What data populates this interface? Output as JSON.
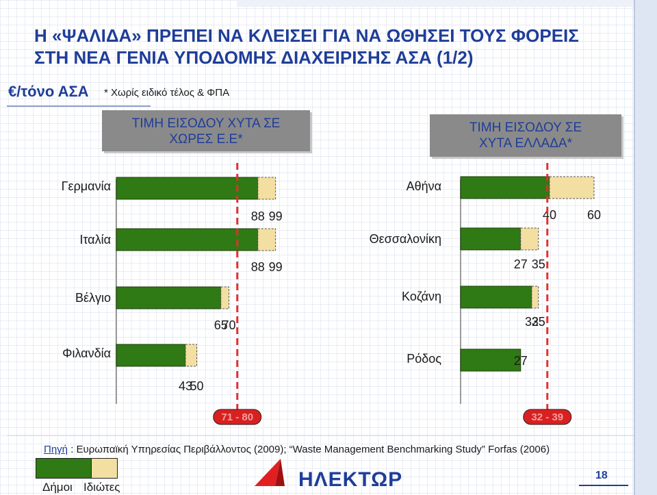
{
  "title_line1": "Η «ΨΑΛΙΔΑ» ΠΡΕΠΕΙ ΝΑ ΚΛΕΙΣΕΙ ΓΙΑ ΝΑ ΩΘΗΣΕΙ ΤΟΥΣ ΦΟΡΕΙΣ",
  "title_line2": "ΣΤΗ ΝΕΑ ΓΕΝΙΑ ΥΠΟΔΟΜΗΣ ΔΙΑΧΕΙΡΙΣΗΣ ΑΣΑ (1/2)",
  "unit": "€/τόνο ΑΣΑ",
  "note": "* Χωρίς ειδικό τέλος & ΦΠΑ",
  "panel_eu_header_line1": "ΤΙΜΗ ΕΙΣΟΔΟΥ ΧΥΤΑ ΣΕ",
  "panel_eu_header_line2": "ΧΩΡΕΣ Ε.Ε*",
  "panel_gr_header_line1": "ΤΙΜΗ ΕΙΣΟΔΟΥ ΣΕ",
  "panel_gr_header_line2": "ΧΥΤΑ ΕΛΛΑΔΑ*",
  "chart_data": [
    {
      "type": "bar",
      "categories": [
        "Γερμανία",
        "Ιταλία",
        "Βέλγιο",
        "Φιλανδία"
      ],
      "series": [
        {
          "name": "Δήμοι",
          "values": [
            88,
            88,
            65,
            43
          ]
        },
        {
          "name": "Ιδιώτες",
          "values": [
            99,
            99,
            70,
            50
          ]
        }
      ],
      "reference_band": {
        "label": "71 - 80",
        "value": 80
      }
    },
    {
      "type": "bar",
      "categories": [
        "Αθήνα",
        "Θεσσαλονίκη",
        "Κοζάνη",
        "Ρόδος"
      ],
      "series": [
        {
          "name": "Δήμοι",
          "values": [
            40,
            27,
            32,
            27
          ]
        },
        {
          "name": "Ιδιώτες",
          "values": [
            60,
            35,
            35,
            null
          ]
        }
      ],
      "reference_band": {
        "label": "32 - 39",
        "value": 39
      }
    }
  ],
  "colors": {
    "dimoi": "#2f7a14",
    "idiotes": "#f3dfa2",
    "ref_line": "#e03030",
    "ref_text": "#f0a0a0"
  },
  "source_label": "Πηγή",
  "source_text": " : Ευρωπαϊκή Υπηρεσίας Περιβάλλοντος (2009); “Waste Management Benchmarking Study” Forfas (2006)",
  "legend_dimoi": "Δήμοι",
  "legend_idiotes": "Ιδιώτες",
  "logo_text": "ΗΛΕΚΤΩΡ",
  "page_number": "18"
}
